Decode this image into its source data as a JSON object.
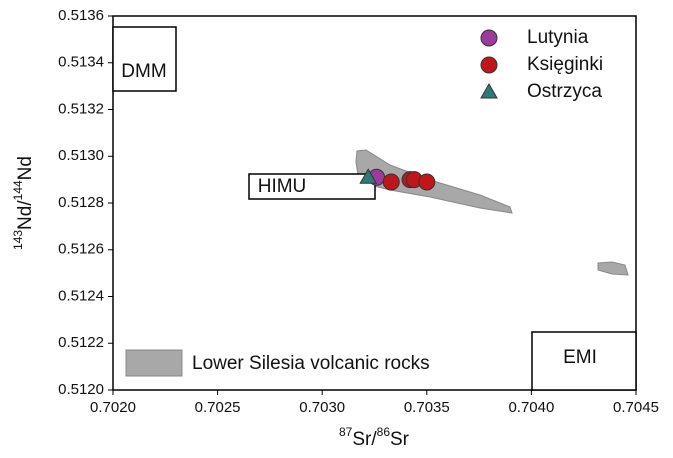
{
  "chart_data": {
    "type": "scatter",
    "x_label": {
      "sup1": "87",
      "text1": "Sr/",
      "sup2": "86",
      "text2": "Sr"
    },
    "y_label": {
      "sup1": "143",
      "text1": "Nd/",
      "sup2": "144",
      "text2": "Nd"
    },
    "xlim": [
      0.702,
      0.7045
    ],
    "xticks": [
      {
        "value": 0.702,
        "label": "0.7020"
      },
      0.7025,
      {
        "value": 0.703,
        "label": "0.7030"
      },
      0.7035,
      {
        "value": 0.704,
        "label": "0.7040"
      },
      0.7045
    ],
    "ylim": [
      0.512,
      0.5136
    ],
    "yticks": [
      {
        "value": 0.512,
        "label": "0.5120"
      },
      0.5122,
      0.5124,
      0.5126,
      0.5128,
      {
        "value": 0.513,
        "label": "0.5130"
      },
      0.5132,
      0.5134,
      0.5136
    ],
    "series": [
      {
        "name": "Lutynia",
        "color": "#9b3b9b",
        "marker": "circle",
        "x": [
          0.70326
        ],
        "values": [
          0.51291
        ]
      },
      {
        "name": "Księginki",
        "color": "#c0161b",
        "marker": "circle",
        "x": [
          0.70333,
          0.70342,
          0.70344,
          0.7035
        ],
        "values": [
          0.51289,
          0.5129,
          0.5129,
          0.51289
        ]
      },
      {
        "name": "Ostrzyca",
        "color": "#2e7a78",
        "marker": "triangle",
        "x": [
          0.70322
        ],
        "values": [
          0.51291
        ]
      }
    ],
    "legend": "upper right",
    "annotations": {
      "dmm": "DMM",
      "himu": "HIMU",
      "emi": "EMI",
      "field": "Lower Silesia volcanic rocks"
    }
  }
}
